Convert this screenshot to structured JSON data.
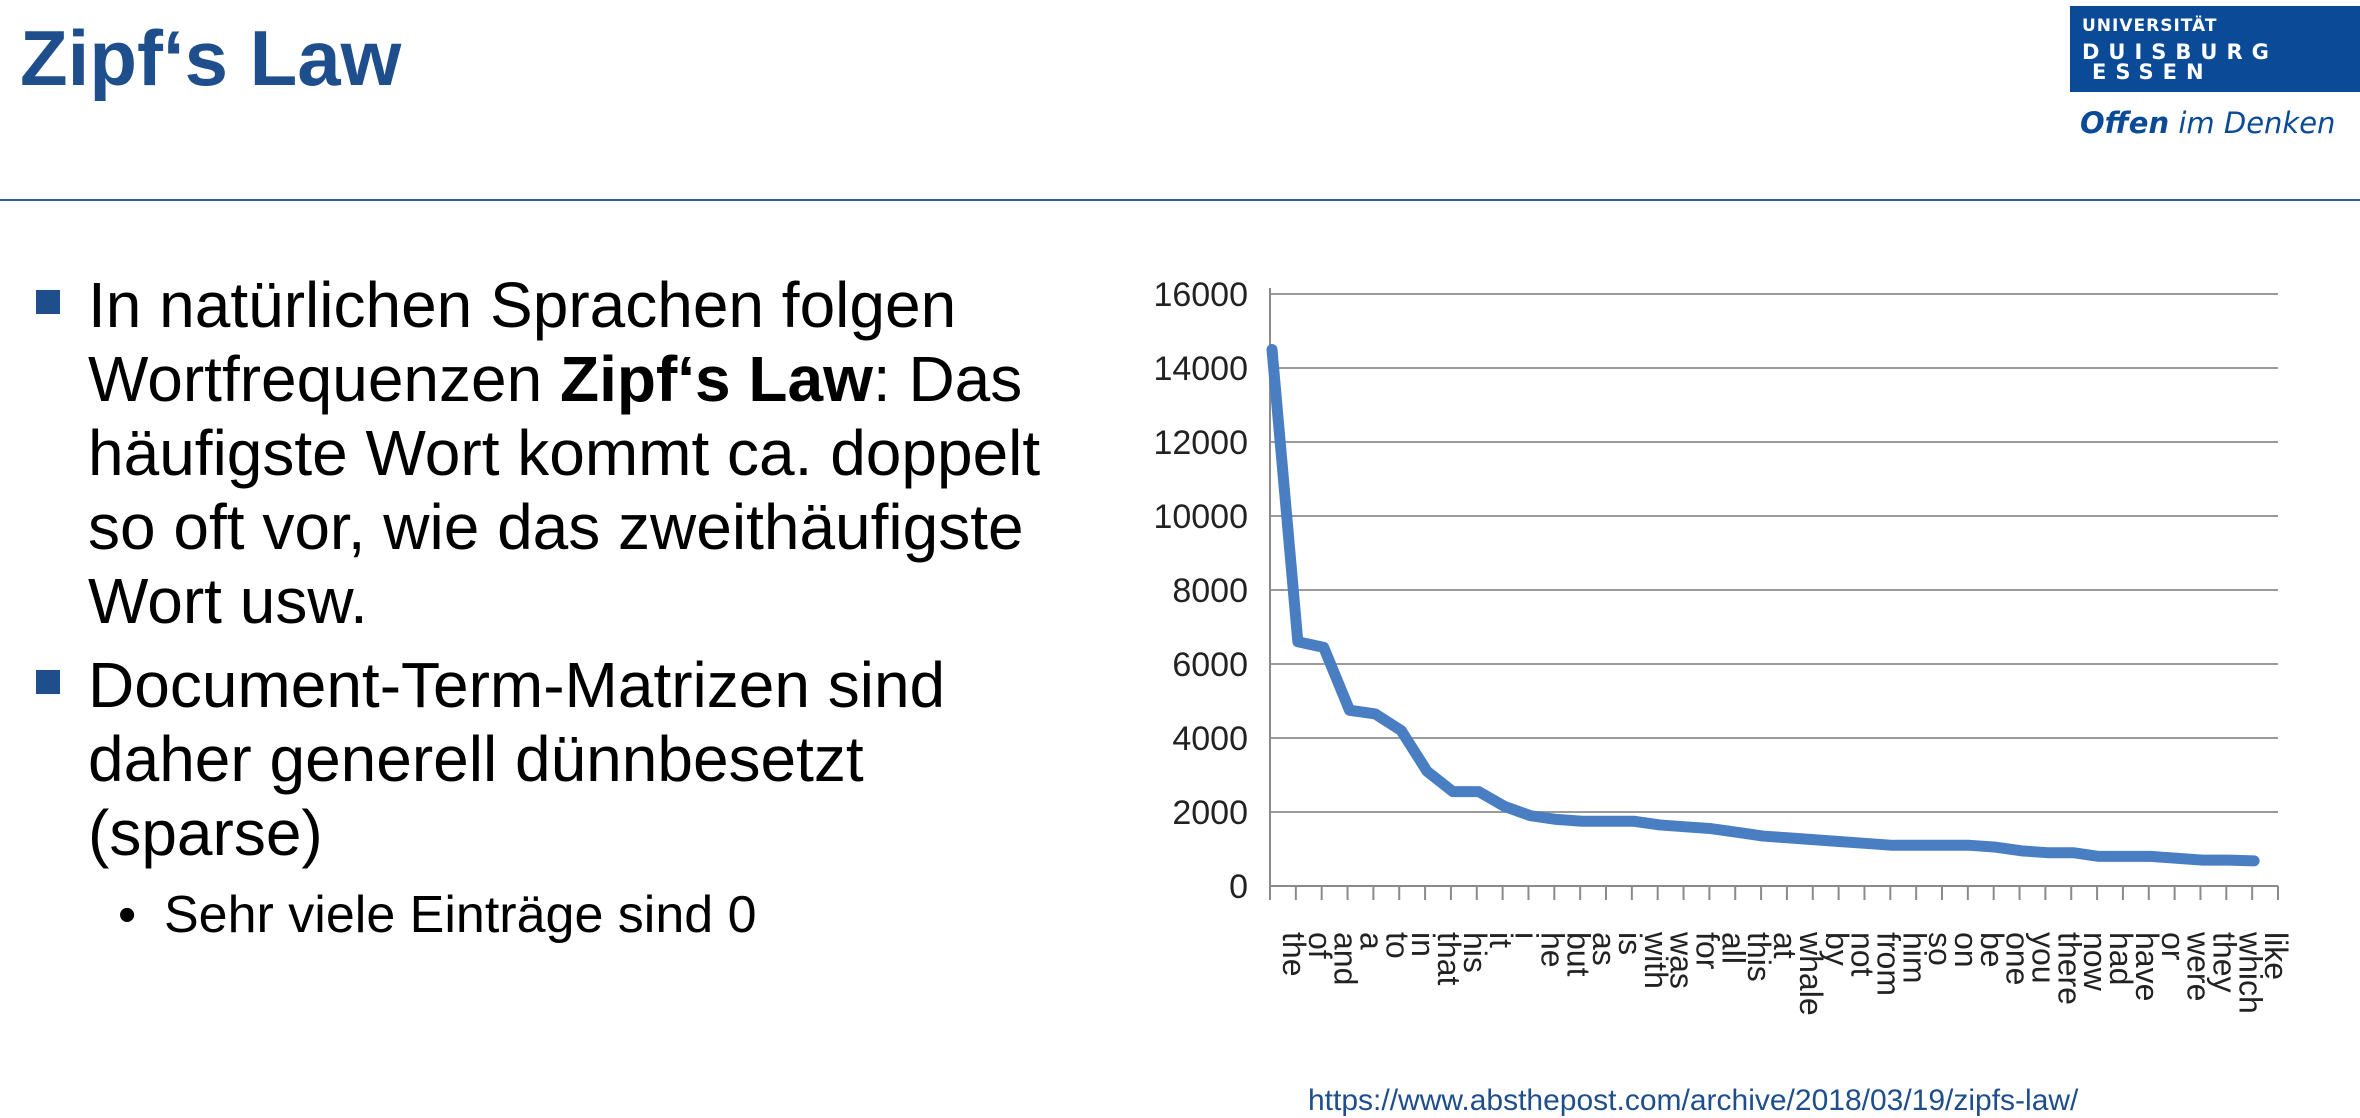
{
  "slide": {
    "title": "Zipf‘s Law"
  },
  "logo": {
    "line1": "UNIVERSITÄT",
    "line2": "DUISBURG",
    "line3": "ESSEN",
    "slogan_bold": "Offen",
    "slogan_rest": " im Denken"
  },
  "bullets": [
    {
      "before": "In natürlichen Sprachen folgen Wortfrequenzen ",
      "bold": "Zipf‘s Law",
      "after": ": Das häufigste Wort kommt ca. doppelt so oft vor, wie das zweithäufigste Wort usw."
    },
    {
      "text": "Document-Term-Matrizen sind daher generell dünnbesetzt (sparse)"
    }
  ],
  "sub_bullets": [
    {
      "text": "Sehr viele Einträge sind 0"
    }
  ],
  "source": "https://www.absthepost.com/archive/2018/03/19/zipfs-law/",
  "chart_data": {
    "type": "line",
    "title": "",
    "xlabel": "",
    "ylabel": "",
    "ylim": [
      0,
      16000
    ],
    "yticks": [
      0,
      2000,
      4000,
      6000,
      8000,
      10000,
      12000,
      14000,
      16000
    ],
    "grid": true,
    "legend": "none",
    "line_color": "#4a7ec2",
    "categories": [
      "the",
      "of",
      "and",
      "a",
      "to",
      "in",
      "that",
      "his",
      "it",
      "i",
      "he",
      "but",
      "as",
      "is",
      "with",
      "was",
      "for",
      "all",
      "this",
      "at",
      "whale",
      "by",
      "not",
      "from",
      "him",
      "so",
      "on",
      "be",
      "one",
      "you",
      "there",
      "now",
      "had",
      "have",
      "or",
      "were",
      "they",
      "which",
      "like"
    ],
    "series": [
      {
        "values": [
          14500,
          6600,
          6450,
          4750,
          4650,
          4200,
          3100,
          2550,
          2550,
          2150,
          1900,
          1800,
          1750,
          1750,
          1750,
          1650,
          1600,
          1550,
          1450,
          1350,
          1300,
          1250,
          1200,
          1150,
          1100,
          1100,
          1100,
          1100,
          1050,
          950,
          900,
          900,
          800,
          800,
          800,
          750,
          700,
          700,
          680
        ]
      }
    ]
  }
}
